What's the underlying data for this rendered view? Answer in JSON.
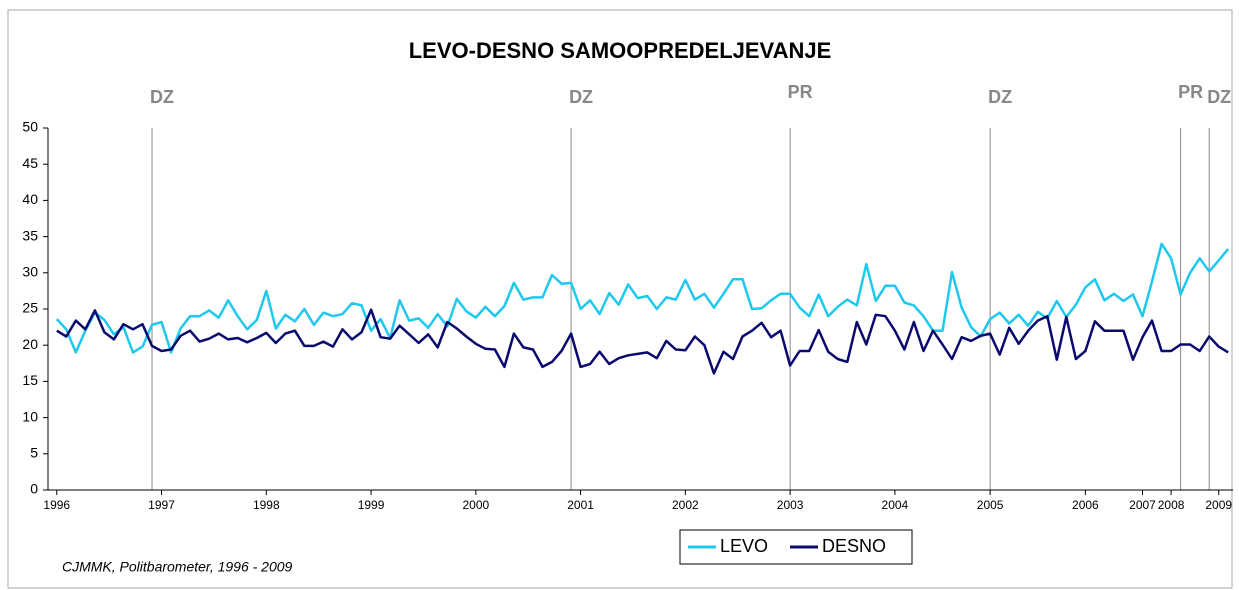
{
  "chart_data": {
    "type": "line",
    "title": "LEVO-DESNO SAMOOPREDELJEVANJE",
    "source": "CJMMK, Politbarometer, 1996 - 2009",
    "categories": [
      "1996",
      null,
      null,
      null,
      null,
      null,
      null,
      null,
      null,
      null,
      null,
      "1997",
      null,
      null,
      null,
      null,
      null,
      null,
      null,
      null,
      null,
      null,
      "1998",
      null,
      null,
      null,
      null,
      null,
      null,
      null,
      null,
      null,
      null,
      "1999",
      null,
      null,
      null,
      null,
      null,
      null,
      null,
      null,
      null,
      null,
      "2000",
      null,
      null,
      null,
      null,
      null,
      null,
      null,
      null,
      null,
      null,
      "2001",
      null,
      null,
      null,
      null,
      null,
      null,
      null,
      null,
      null,
      null,
      "2002",
      null,
      null,
      null,
      null,
      null,
      null,
      null,
      null,
      null,
      null,
      "2003",
      null,
      null,
      null,
      null,
      null,
      null,
      null,
      null,
      null,
      null,
      "2004",
      null,
      null,
      null,
      null,
      null,
      null,
      null,
      null,
      null,
      "2005",
      null,
      null,
      null,
      null,
      null,
      null,
      null,
      null,
      null,
      "2006",
      null,
      null,
      null,
      null,
      null,
      "2007",
      null,
      null,
      "2008",
      null,
      null,
      null,
      null,
      "2009",
      null
    ],
    "series": [
      {
        "name": "LEVO",
        "color": "#1ec8ee",
        "values": [
          23.6,
          22.2,
          19,
          22,
          24.5,
          23.5,
          21.5,
          22.5,
          19,
          19.8,
          22.8,
          23.2,
          19,
          22.3,
          24,
          24,
          24.8,
          23.8,
          26.2,
          24,
          22.2,
          23.5,
          27.5,
          22.3,
          24.2,
          23.3,
          25,
          22.8,
          24.5,
          24,
          24.3,
          25.8,
          25.5,
          22,
          23.6,
          21,
          26.2,
          23.4,
          23.7,
          22.4,
          24.3,
          22.6,
          26.4,
          24.7,
          23.8,
          25.3,
          24,
          25.4,
          28.6,
          26.3,
          26.6,
          26.6,
          29.7,
          28.5,
          28.6,
          25,
          26.2,
          24.3,
          27.2,
          25.6,
          28.4,
          26.5,
          26.8,
          25,
          26.6,
          26.3,
          29,
          26.3,
          27.1,
          25.2,
          27.1,
          29.1,
          29.1,
          25,
          25.1,
          26.2,
          27.1,
          27.1,
          25.2,
          24,
          27,
          24,
          25.3,
          26.3,
          25.5,
          31.2,
          26.1,
          28.2,
          28.2,
          25.9,
          25.5,
          24,
          22,
          22,
          30.1,
          25.2,
          22.5,
          21.2,
          23.6,
          24.5,
          23,
          24.2,
          22.7,
          24.6,
          23.7,
          26.1,
          23.9,
          25.6,
          28,
          29.1,
          26.2,
          27.1,
          26.1,
          27,
          24,
          28.8,
          34,
          32,
          27,
          30,
          32,
          30.2,
          31.7,
          33.3
        ]
      },
      {
        "name": "DESNO",
        "color": "#0a0a6e",
        "values": [
          22,
          21.2,
          23.4,
          22.2,
          24.8,
          21.8,
          20.8,
          22.9,
          22.2,
          22.9,
          19.9,
          19.2,
          19.4,
          21.3,
          22,
          20.5,
          20.9,
          21.6,
          20.8,
          21,
          20.4,
          21,
          21.7,
          20.3,
          21.6,
          22,
          19.9,
          19.9,
          20.5,
          19.8,
          22.2,
          20.8,
          21.8,
          24.9,
          21.1,
          20.9,
          22.7,
          21.5,
          20.3,
          21.5,
          19.7,
          23.2,
          22.3,
          21.2,
          20.2,
          19.5,
          19.4,
          17,
          21.6,
          19.7,
          19.4,
          17,
          17.7,
          19.2,
          21.6,
          17,
          17.4,
          19.1,
          17.4,
          18.2,
          18.6,
          18.8,
          19,
          18.2,
          20.6,
          19.4,
          19.3,
          21.2,
          20,
          16.1,
          19.1,
          18.1,
          21.2,
          22,
          23.1,
          21.1,
          22,
          17.2,
          19.2,
          19.2,
          22.1,
          19.1,
          18.1,
          17.7,
          23.2,
          20.1,
          24.2,
          24,
          22,
          19.4,
          23.2,
          19.2,
          22,
          20.1,
          18.1,
          21.1,
          20.6,
          21.3,
          21.6,
          18.7,
          22.4,
          20.2,
          22,
          23.4,
          24,
          18,
          23.9,
          18.1,
          19.2,
          23.3,
          22,
          22,
          22,
          18,
          21.1,
          23.4,
          19.2,
          19.2,
          20.1,
          20.1,
          19.2,
          21.2,
          19.8,
          19
        ]
      }
    ],
    "annotations": [
      {
        "label": "DZ",
        "index": 10
      },
      {
        "label": "DZ",
        "index": 54
      },
      {
        "label": "PR",
        "index": 77
      },
      {
        "label": "DZ",
        "index": 98
      },
      {
        "label": "PR",
        "index": 118
      },
      {
        "label": "DZ",
        "index": 121
      }
    ],
    "ylim": [
      0,
      50
    ],
    "yticks": [
      0,
      5,
      10,
      15,
      20,
      25,
      30,
      35,
      40,
      45,
      50
    ],
    "grid": false,
    "legend": "bottom"
  }
}
